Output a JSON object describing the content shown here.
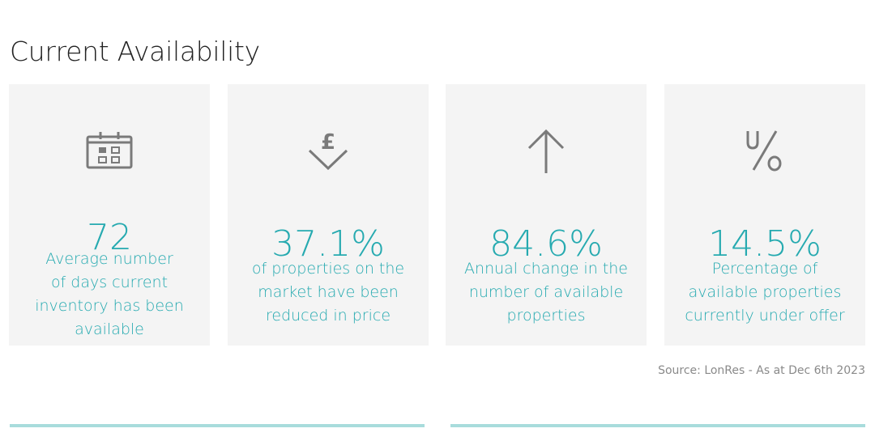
{
  "title": "Current Availability",
  "accent_color": "#26aab0",
  "cards": [
    {
      "icon": "calendar-icon",
      "value": "72",
      "desc_lines": [
        "Average number",
        "of days current",
        "inventory has been",
        "available"
      ]
    },
    {
      "icon": "pound-down-arrow-icon",
      "value": "37.1%",
      "desc_lines": [
        "of properties on the",
        "market have been",
        "reduced in price"
      ]
    },
    {
      "icon": "arrow-up-icon",
      "value": "84.6%",
      "desc_lines": [
        "Annual change in the",
        "number of available",
        "properties"
      ]
    },
    {
      "icon": "percent-icon",
      "value": "14.5%",
      "desc_lines": [
        "Percentage of",
        "available properties",
        "currently under offer"
      ]
    }
  ],
  "source": "Source: LonRes - As at Dec 6th 2023"
}
